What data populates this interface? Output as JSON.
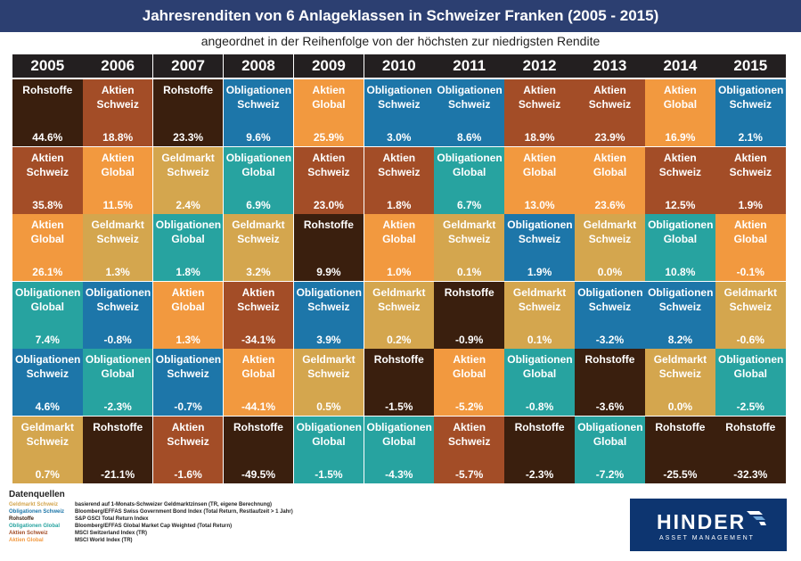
{
  "header": {
    "title": "Jahresrenditen von 6 Anlageklassen in Schweizer Franken (2005 - 2015)",
    "subtitle": "angeordnet in der Reihenfolge von der höchsten zur niedrigsten Rendite"
  },
  "asset_classes": {
    "rohstoffe": {
      "label": "Rohstoffe",
      "color": "#3a1f0e",
      "text_color": "#ffffff"
    },
    "aktien_ch": {
      "label": "Aktien\nSchweiz",
      "color": "#a34d27",
      "text_color": "#ffffff"
    },
    "aktien_gl": {
      "label": "Aktien\nGlobal",
      "color": "#f2993f",
      "text_color": "#ffffff"
    },
    "geldmarkt": {
      "label": "Geldmarkt\nSchweiz",
      "color": "#d4a64e",
      "text_color": "#ffffff"
    },
    "oblig_ch": {
      "label": "Obligationen\nSchweiz",
      "color": "#1d76a9",
      "text_color": "#ffffff"
    },
    "oblig_gl": {
      "label": "Obligationen\nGlobal",
      "color": "#27a3a0",
      "text_color": "#ffffff"
    }
  },
  "chart_data": {
    "type": "table",
    "title": "Jahresrenditen von 6 Anlageklassen in Schweizer Franken (2005 - 2015)",
    "subtitle": "angeordnet in der Reihenfolge von der höchsten zur niedrigsten Rendite",
    "unit": "%",
    "years": [
      "2005",
      "2006",
      "2007",
      "2008",
      "2009",
      "2010",
      "2011",
      "2012",
      "2013",
      "2014",
      "2015"
    ],
    "columns": [
      [
        [
          "rohstoffe",
          "44.6%"
        ],
        [
          "aktien_ch",
          "35.8%"
        ],
        [
          "aktien_gl",
          "26.1%"
        ],
        [
          "oblig_gl",
          "7.4%"
        ],
        [
          "oblig_ch",
          "4.6%"
        ],
        [
          "geldmarkt",
          "0.7%"
        ]
      ],
      [
        [
          "aktien_ch",
          "18.8%"
        ],
        [
          "aktien_gl",
          "11.5%"
        ],
        [
          "geldmarkt",
          "1.3%"
        ],
        [
          "oblig_ch",
          "-0.8%"
        ],
        [
          "oblig_gl",
          "-2.3%"
        ],
        [
          "rohstoffe",
          "-21.1%"
        ]
      ],
      [
        [
          "rohstoffe",
          "23.3%"
        ],
        [
          "geldmarkt",
          "2.4%"
        ],
        [
          "oblig_gl",
          "1.8%"
        ],
        [
          "aktien_gl",
          "1.3%"
        ],
        [
          "oblig_ch",
          "-0.7%"
        ],
        [
          "aktien_ch",
          "-1.6%"
        ]
      ],
      [
        [
          "oblig_ch",
          "9.6%"
        ],
        [
          "oblig_gl",
          "6.9%"
        ],
        [
          "geldmarkt",
          "3.2%"
        ],
        [
          "aktien_ch",
          "-34.1%"
        ],
        [
          "aktien_gl",
          "-44.1%"
        ],
        [
          "rohstoffe",
          "-49.5%"
        ]
      ],
      [
        [
          "aktien_gl",
          "25.9%"
        ],
        [
          "aktien_ch",
          "23.0%"
        ],
        [
          "rohstoffe",
          "9.9%"
        ],
        [
          "oblig_ch",
          "3.9%"
        ],
        [
          "geldmarkt",
          "0.5%"
        ],
        [
          "oblig_gl",
          "-1.5%"
        ]
      ],
      [
        [
          "oblig_ch",
          "3.0%"
        ],
        [
          "aktien_ch",
          "1.8%"
        ],
        [
          "aktien_gl",
          "1.0%"
        ],
        [
          "geldmarkt",
          "0.2%"
        ],
        [
          "rohstoffe",
          "-1.5%"
        ],
        [
          "oblig_gl",
          "-4.3%"
        ]
      ],
      [
        [
          "oblig_ch",
          "8.6%"
        ],
        [
          "oblig_gl",
          "6.7%"
        ],
        [
          "geldmarkt",
          "0.1%"
        ],
        [
          "rohstoffe",
          "-0.9%"
        ],
        [
          "aktien_gl",
          "-5.2%"
        ],
        [
          "aktien_ch",
          "-5.7%"
        ]
      ],
      [
        [
          "aktien_ch",
          "18.9%"
        ],
        [
          "aktien_gl",
          "13.0%"
        ],
        [
          "oblig_ch",
          "1.9%"
        ],
        [
          "geldmarkt",
          "0.1%"
        ],
        [
          "oblig_gl",
          "-0.8%"
        ],
        [
          "rohstoffe",
          "-2.3%"
        ]
      ],
      [
        [
          "aktien_ch",
          "23.9%"
        ],
        [
          "aktien_gl",
          "23.6%"
        ],
        [
          "geldmarkt",
          "0.0%"
        ],
        [
          "oblig_ch",
          "-3.2%"
        ],
        [
          "rohstoffe",
          "-3.6%"
        ],
        [
          "oblig_gl",
          "-7.2%"
        ]
      ],
      [
        [
          "aktien_gl",
          "16.9%"
        ],
        [
          "aktien_ch",
          "12.5%"
        ],
        [
          "oblig_gl",
          "10.8%"
        ],
        [
          "oblig_ch",
          "8.2%"
        ],
        [
          "geldmarkt",
          "0.0%"
        ],
        [
          "rohstoffe",
          "-25.5%"
        ]
      ],
      [
        [
          "oblig_ch",
          "2.1%"
        ],
        [
          "aktien_ch",
          "1.9%"
        ],
        [
          "aktien_gl",
          "-0.1%"
        ],
        [
          "geldmarkt",
          "-0.6%"
        ],
        [
          "oblig_gl",
          "-2.5%"
        ],
        [
          "rohstoffe",
          "-32.3%"
        ]
      ]
    ]
  },
  "sources": {
    "title": "Datenquellen",
    "items": [
      {
        "name": "Geldmarkt Schweiz",
        "color": "#d4a64e",
        "desc": "basierend auf 1-Monats-Schweizer Geldmarktzinsen (TR, eigene Berechnung)"
      },
      {
        "name": "Obligationen Schweiz",
        "color": "#1d76a9",
        "desc": "Bloomberg/EFFAS Swiss Government Bond Index (Total Return, Restlaufzeit > 1 Jahr)"
      },
      {
        "name": "Rohstoffe",
        "color": "#3a1f0e",
        "desc": "S&P GSCI Total Return Index"
      },
      {
        "name": "Obligationen Global",
        "color": "#27a3a0",
        "desc": "Bloomberg/EFFAS Global Market Cap Weighted (Total Return)"
      },
      {
        "name": "Aktien Schweiz",
        "color": "#a34d27",
        "desc": "MSCI Switzerland Index (TR)"
      },
      {
        "name": "Aktien Global",
        "color": "#f2993f",
        "desc": "MSCI World Index (TR)"
      }
    ]
  },
  "logo": {
    "word": "HINDER",
    "sub": "ASSET MANAGEMENT"
  }
}
